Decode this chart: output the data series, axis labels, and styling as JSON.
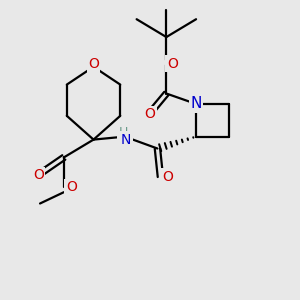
{
  "bg_color": "#e8e8e8",
  "bond_color": "#000000",
  "N_color": "#0000cc",
  "O_color": "#cc0000",
  "H_color": "#6a9a8a",
  "line_width": 1.6,
  "font_size_atom": 10,
  "fig_size": [
    3.0,
    3.0
  ],
  "dpi": 100,
  "xlim": [
    0,
    10
  ],
  "ylim": [
    0,
    10
  ]
}
